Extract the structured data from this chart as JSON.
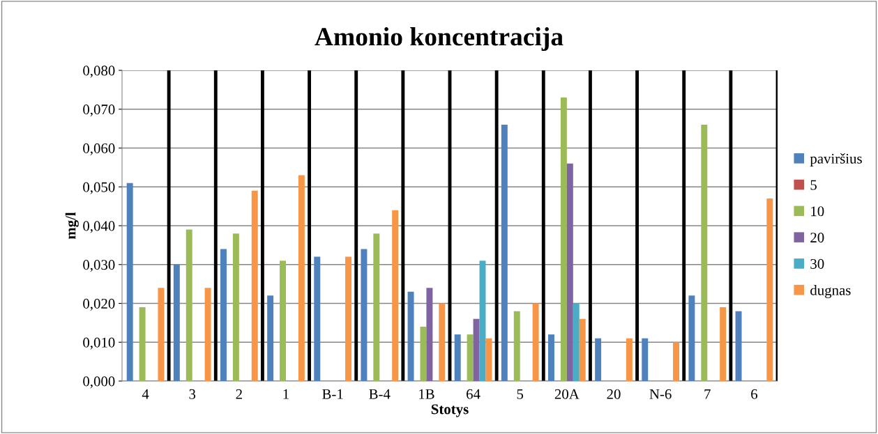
{
  "chart_data": {
    "type": "bar",
    "title": "Amonio koncentracija",
    "xlabel": "Stotys",
    "ylabel": "mg/l",
    "categories": [
      "4",
      "3",
      "2",
      "1",
      "B-1",
      "B-4",
      "1B",
      "64",
      "5",
      "20A",
      "20",
      "N-6",
      "7",
      "6"
    ],
    "series": [
      {
        "name": "paviršius",
        "color": "#4f81bd",
        "values": [
          0.051,
          0.03,
          0.034,
          0.022,
          0.032,
          0.034,
          0.023,
          0.012,
          0.066,
          0.012,
          0.011,
          0.011,
          0.022,
          0.018
        ]
      },
      {
        "name": "5",
        "color": "#c0504d",
        "values": [
          null,
          null,
          null,
          null,
          null,
          null,
          null,
          null,
          null,
          null,
          null,
          null,
          null,
          null
        ]
      },
      {
        "name": "10",
        "color": "#9bbb59",
        "values": [
          0.019,
          0.039,
          0.038,
          0.031,
          null,
          0.038,
          0.014,
          0.012,
          0.018,
          0.073,
          null,
          null,
          0.066,
          null
        ]
      },
      {
        "name": "20",
        "color": "#8064a2",
        "values": [
          null,
          null,
          null,
          null,
          null,
          null,
          0.024,
          0.016,
          null,
          0.056,
          null,
          null,
          null,
          null
        ]
      },
      {
        "name": "30",
        "color": "#4bacc6",
        "values": [
          null,
          null,
          null,
          null,
          null,
          null,
          null,
          0.031,
          null,
          0.02,
          null,
          null,
          null,
          null
        ]
      },
      {
        "name": "dugnas",
        "color": "#f79646",
        "values": [
          0.024,
          0.024,
          0.049,
          0.053,
          0.032,
          0.044,
          0.02,
          0.011,
          0.02,
          0.016,
          0.011,
          0.01,
          0.019,
          0.047
        ]
      }
    ],
    "ylim": [
      0,
      0.08
    ],
    "yticks": [
      {
        "value": 0,
        "label": "0,000"
      },
      {
        "value": 0.01,
        "label": "0,010"
      },
      {
        "value": 0.02,
        "label": "0,020"
      },
      {
        "value": 0.03,
        "label": "0,030"
      },
      {
        "value": 0.04,
        "label": "0,040"
      },
      {
        "value": 0.05,
        "label": "0,050"
      },
      {
        "value": 0.06,
        "label": "0,060"
      },
      {
        "value": 0.07,
        "label": "0,070"
      },
      {
        "value": 0.08,
        "label": "0,080"
      }
    ],
    "grid": true,
    "legend": "right"
  }
}
